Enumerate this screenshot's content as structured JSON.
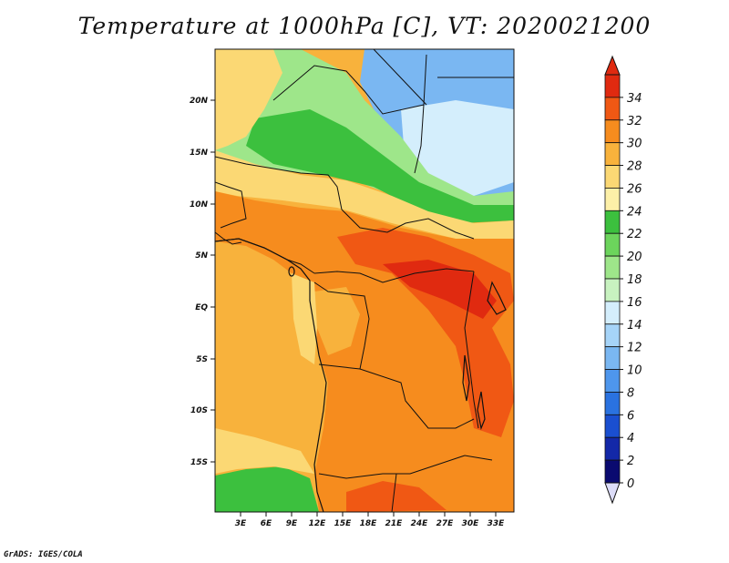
{
  "title": "Temperature at 1000hPa [C], VT: 2020021200",
  "credit": "GrADS: IGES/COLA",
  "lat_labels": [
    "20N",
    "15N",
    "10N",
    "5N",
    "EQ",
    "5S",
    "10S",
    "15S"
  ],
  "lon_labels": [
    "3E",
    "6E",
    "9E",
    "12E",
    "15E",
    "18E",
    "21E",
    "24E",
    "27E",
    "30E",
    "33E"
  ],
  "colorbar": {
    "labels": [
      "0",
      "2",
      "4",
      "6",
      "8",
      "10",
      "12",
      "14",
      "16",
      "18",
      "20",
      "22",
      "24",
      "26",
      "28",
      "30",
      "32",
      "34"
    ],
    "colors": [
      "#0a0a70",
      "#1328a8",
      "#1a4fd0",
      "#2a72e0",
      "#4e96ec",
      "#7ab7f2",
      "#a6d4f8",
      "#d4eefc",
      "#c8f2c0",
      "#9ee68a",
      "#6cd45c",
      "#3cc03e",
      "#fdf0a8",
      "#fbd874",
      "#f8b23c",
      "#f68c1e",
      "#f05814",
      "#e02a10"
    ]
  },
  "colors": {
    "ocean_warm": "#f8b23c",
    "land_hot": "#f68c1e",
    "land_hottest": "#f05814",
    "sahara_green": "#3cc03e",
    "cool_blue": "#7ab7f2",
    "border": "#111111"
  }
}
